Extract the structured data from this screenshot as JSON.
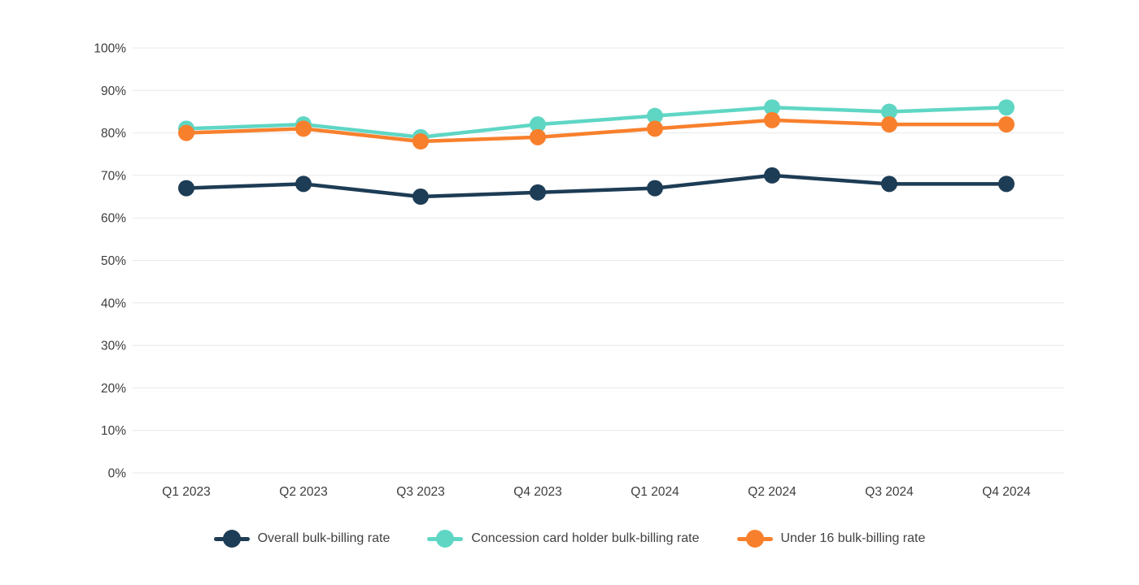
{
  "chart_data": {
    "type": "line",
    "title": "",
    "xlabel": "",
    "ylabel": "",
    "categories": [
      "Q1 2023",
      "Q2 2023",
      "Q3 2023",
      "Q4 2023",
      "Q1 2024",
      "Q2 2024",
      "Q3 2024",
      "Q4 2024"
    ],
    "series": [
      {
        "name": "Overall bulk-billing rate",
        "color": "#1d3c55",
        "values": [
          67,
          68,
          65,
          66,
          67,
          70,
          68,
          68
        ]
      },
      {
        "name": "Concession card holder bulk-billing rate",
        "color": "#5fd6c4",
        "values": [
          81,
          82,
          79,
          82,
          84,
          86,
          85,
          86
        ]
      },
      {
        "name": "Under 16 bulk-billing rate",
        "color": "#f8802d",
        "values": [
          80,
          81,
          78,
          79,
          81,
          83,
          82,
          82
        ]
      }
    ],
    "ylim": [
      0,
      100
    ],
    "y_tick_step": 10,
    "y_tick_labels": [
      "100%",
      "90%",
      "80%",
      "70%",
      "60%",
      "50%",
      "40%",
      "30%",
      "20%",
      "10%",
      "0%"
    ],
    "grid": "horizontal",
    "legend_position": "bottom",
    "colors": {
      "gridline": "#e8e8e8",
      "tick_label": "#3d3d3d",
      "legend_text": "#424242",
      "background": "#ffffff"
    }
  }
}
